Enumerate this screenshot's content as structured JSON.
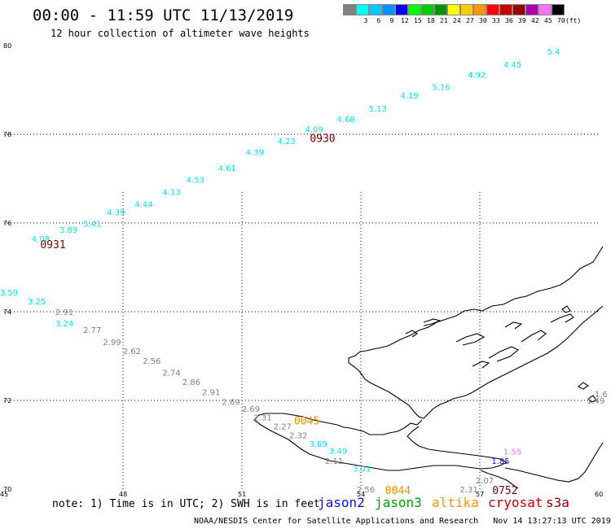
{
  "header": {
    "title": "00:00 - 11:59 UTC 11/13/2019",
    "subtitle": "12 hour collection of altimeter wave heights"
  },
  "legend": {
    "unit": "(ft)",
    "items": [
      {
        "label": "",
        "color": "#808080"
      },
      {
        "label": "3",
        "color": "#00ffff"
      },
      {
        "label": "6",
        "color": "#00c8ff"
      },
      {
        "label": "9",
        "color": "#0090ff"
      },
      {
        "label": "12",
        "color": "#0000ff"
      },
      {
        "label": "15",
        "color": "#00ff00"
      },
      {
        "label": "18",
        "color": "#00cc00"
      },
      {
        "label": "21",
        "color": "#009600"
      },
      {
        "label": "24",
        "color": "#ffff00"
      },
      {
        "label": "27",
        "color": "#ffcc00"
      },
      {
        "label": "30",
        "color": "#ff9600"
      },
      {
        "label": "33",
        "color": "#ff0000"
      },
      {
        "label": "36",
        "color": "#c80000"
      },
      {
        "label": "39",
        "color": "#960000"
      },
      {
        "label": "42",
        "color": "#aa00aa"
      },
      {
        "label": "45",
        "color": "#ff70ff"
      },
      {
        "label": "70",
        "color": "#000000"
      }
    ]
  },
  "axes": {
    "lat_labels": [
      "80",
      "78",
      "76",
      "74",
      "72",
      "70"
    ],
    "lat_values": [
      80,
      78,
      76,
      74,
      72,
      70
    ],
    "lon_labels": [
      "45",
      "48",
      "51",
      "54",
      "57",
      "60"
    ],
    "lon_values": [
      45,
      48,
      51,
      54,
      57,
      60
    ]
  },
  "tracks": [
    {
      "satellite": "cryosat s3a",
      "color": "#00e5e5",
      "points": [
        {
          "lat": 75.65,
          "lon": 45.9,
          "swh": "4.08"
        },
        {
          "lat": 75.85,
          "lon": 46.6,
          "swh": "3.89"
        },
        {
          "lat": 75.99,
          "lon": 47.2,
          "swh": "5.41"
        },
        {
          "lat": 76.25,
          "lon": 47.8,
          "swh": "4.39"
        },
        {
          "lat": 76.43,
          "lon": 48.5,
          "swh": "4.44"
        },
        {
          "lat": 76.71,
          "lon": 49.2,
          "swh": "4.13"
        },
        {
          "lat": 76.98,
          "lon": 49.8,
          "swh": "4.53"
        },
        {
          "lat": 77.25,
          "lon": 50.6,
          "swh": "4.61"
        },
        {
          "lat": 77.61,
          "lon": 51.3,
          "swh": "4.39"
        },
        {
          "lat": 77.85,
          "lon": 52.1,
          "swh": "4.23"
        },
        {
          "lat": 78.12,
          "lon": 52.8,
          "swh": "4.09"
        },
        {
          "lat": 78.35,
          "lon": 53.6,
          "swh": "4.68"
        },
        {
          "lat": 78.59,
          "lon": 54.4,
          "swh": "5.13"
        },
        {
          "lat": 78.88,
          "lon": 55.2,
          "swh": "4.19"
        },
        {
          "lat": 79.07,
          "lon": 56.0,
          "swh": "5.16"
        },
        {
          "lat": 79.35,
          "lon": 56.9,
          "swh": "4.92"
        },
        {
          "lat": 79.58,
          "lon": 57.8,
          "swh": "4.45"
        },
        {
          "lat": 79.87,
          "lon": 58.9,
          "swh": "5.4"
        }
      ]
    },
    {
      "satellite": "cryosat s3a",
      "color": "#00e5e5",
      "points": [
        {
          "lat": 74.44,
          "lon": 45.1,
          "swh": "3.59"
        },
        {
          "lat": 74.24,
          "lon": 45.8,
          "swh": "3.25"
        },
        {
          "lat": 73.74,
          "lon": 46.5,
          "swh": "3.24"
        },
        {
          "lat": 71.03,
          "lon": 52.9,
          "swh": "3.89"
        },
        {
          "lat": 70.87,
          "lon": 53.4,
          "swh": "3.49"
        },
        {
          "lat": 70.47,
          "lon": 54.0,
          "swh": "3.01"
        }
      ]
    },
    {
      "satellite": "unknown",
      "color": "#808080",
      "points": [
        {
          "lat": 74.0,
          "lon": 46.5,
          "swh": "2.91"
        },
        {
          "lat": 73.6,
          "lon": 47.2,
          "swh": "2.77"
        },
        {
          "lat": 73.32,
          "lon": 47.7,
          "swh": "2.99"
        },
        {
          "lat": 73.12,
          "lon": 48.2,
          "swh": "2.62"
        },
        {
          "lat": 72.9,
          "lon": 48.7,
          "swh": "2.56"
        },
        {
          "lat": 72.63,
          "lon": 49.2,
          "swh": "2.74"
        },
        {
          "lat": 72.42,
          "lon": 49.7,
          "swh": "2.86"
        },
        {
          "lat": 72.19,
          "lon": 50.2,
          "swh": "2.91"
        },
        {
          "lat": 71.97,
          "lon": 50.7,
          "swh": "2.69"
        },
        {
          "lat": 71.82,
          "lon": 51.2,
          "swh": "2.69"
        },
        {
          "lat": 71.62,
          "lon": 51.5,
          "swh": "2.31"
        },
        {
          "lat": 71.42,
          "lon": 52.0,
          "swh": "2.27"
        },
        {
          "lat": 71.22,
          "lon": 52.4,
          "swh": "2.32"
        },
        {
          "lat": 70.64,
          "lon": 53.3,
          "swh": "2.11"
        },
        {
          "lat": 70.0,
          "lon": 54.1,
          "swh": "2.56"
        },
        {
          "lat": 70.0,
          "lon": 56.7,
          "swh": "2.31"
        },
        {
          "lat": 70.2,
          "lon": 57.1,
          "swh": "2.07"
        },
        {
          "lat": 72.0,
          "lon": 59.9,
          "swh": "1.49"
        },
        {
          "lat": 72.15,
          "lon": 60.1,
          "swh": "1.6"
        }
      ]
    },
    {
      "satellite": "jason2",
      "color": "#1e1ec8",
      "points": [
        {
          "lat": 70.64,
          "lon": 57.5,
          "swh": "1.85"
        }
      ]
    },
    {
      "satellite": "unknown",
      "color": "#e870e8",
      "points": [
        {
          "lat": 70.85,
          "lon": 57.8,
          "swh": "1.55"
        }
      ]
    }
  ],
  "time_labels": [
    {
      "text": "0931",
      "color": "#7a0000",
      "lat": 75.52,
      "lon": 46.2
    },
    {
      "text": "0930",
      "color": "#7a0000",
      "lat": 77.92,
      "lon": 53.0
    },
    {
      "text": "0045",
      "color": "#e89000",
      "lat": 71.55,
      "lon": 52.6
    },
    {
      "text": "0044",
      "color": "#e89000",
      "lat": 69.98,
      "lon": 54.9
    },
    {
      "text": "0752",
      "color": "#7a0000",
      "lat": 69.98,
      "lon": 57.6
    }
  ],
  "footer": {
    "note": "note: 1) Time is in UTC; 2) SWH is in feet",
    "satellites": [
      {
        "name": "jason2",
        "color": "#1010e0"
      },
      {
        "name": "jason3",
        "color": "#00a000"
      },
      {
        "name": "altika",
        "color": "#ff9600"
      },
      {
        "name": "cryosat",
        "color": "#c80000"
      },
      {
        "name": "s3a",
        "color": "#8b0000"
      }
    ],
    "credit": "NOAA/NESDIS Center for Satellite Applications and Research   Nov 14 13:27:13 UTC 2019"
  }
}
